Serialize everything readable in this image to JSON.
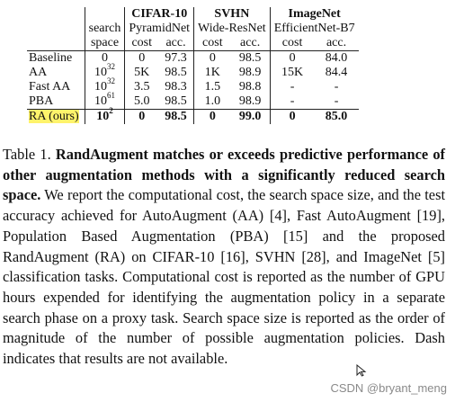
{
  "table": {
    "groups": [
      {
        "name": "CIFAR-10",
        "model": "PyramidNet"
      },
      {
        "name": "SVHN",
        "model": "Wide-ResNet"
      },
      {
        "name": "ImageNet",
        "model": "EfficientNet-B7"
      }
    ],
    "search_header_1": "search",
    "search_header_2": "space",
    "cost_label": "cost",
    "acc_label": "acc.",
    "rows": [
      {
        "method": "Baseline",
        "space_base": "0",
        "space_exp": "",
        "c1": "0",
        "a1": "97.3",
        "c2": "0",
        "a2": "98.5",
        "c3": "0",
        "a3": "84.0"
      },
      {
        "method": "AA",
        "space_base": "10",
        "space_exp": "32",
        "c1": "5K",
        "a1": "98.5",
        "c2": "1K",
        "a2": "98.9",
        "c3": "15K",
        "a3": "84.4"
      },
      {
        "method": "Fast AA",
        "space_base": "10",
        "space_exp": "32",
        "c1": "3.5",
        "a1": "98.3",
        "c2": "1.5",
        "a2": "98.8",
        "c3": "-",
        "a3": "-"
      },
      {
        "method": "PBA",
        "space_base": "10",
        "space_exp": "61",
        "c1": "5.0",
        "a1": "98.5",
        "c2": "1.0",
        "a2": "98.9",
        "c3": "-",
        "a3": "-"
      },
      {
        "method": "RA (ours)",
        "space_base": "10",
        "space_exp": "2",
        "c1": "0",
        "a1": "98.5",
        "c2": "0",
        "a2": "99.0",
        "c3": "0",
        "a3": "85.0"
      }
    ]
  },
  "caption": {
    "label": "Table 1.",
    "bold": "RandAugment matches or exceeds predictive performance of other augmentation methods with a significantly reduced search space.",
    "body": " We report the computational cost, the search space size, and the test accuracy achieved for AutoAugment (AA) [4], Fast AutoAugment [19], Population Based Augmentation (PBA) [15] and the proposed RandAugment (RA) on CIFAR-10 [16], SVHN [28], and ImageNet [5] classification tasks. Computational cost is reported as the number of GPU hours expended for identifying the augmentation policy in a separate search phase on a proxy task. Search space size is reported as the order of magnitude of the number of possible augmentation policies. Dash indicates that results are not available."
  },
  "watermark": "CSDN @bryant_meng",
  "colors": {
    "highlight": "#fff36b",
    "text": "#111111",
    "watermark": "#8a8a8a"
  },
  "icons": {
    "cursor": "mouse-pointer-icon"
  }
}
